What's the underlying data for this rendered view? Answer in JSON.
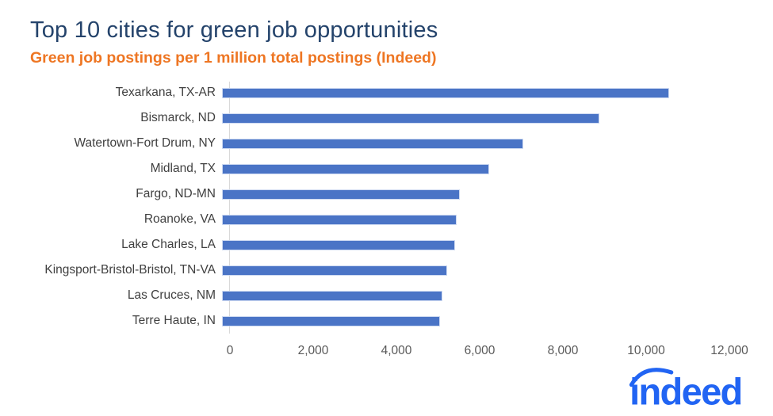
{
  "header": {
    "title": "Top 10 cities for green job opportunities",
    "subtitle": "Green job postings per 1 million total postings (Indeed)"
  },
  "chart_data": {
    "type": "bar",
    "orientation": "horizontal",
    "title": "Top 10 cities for green job opportunities",
    "subtitle": "Green job postings per 1 million total postings (Indeed)",
    "categories": [
      "Texarkana, TX-AR",
      "Bismarck, ND",
      "Watertown-Fort Drum, NY",
      "Midland, TX",
      "Fargo, ND-MN",
      "Roanoke, VA",
      "Lake Charles, LA",
      "Kingsport-Bristol-Bristol, TN-VA",
      "Las Cruces, NM",
      "Terre Haute, IN"
    ],
    "values": [
      10750,
      9070,
      7230,
      6420,
      5720,
      5640,
      5600,
      5410,
      5300,
      5240
    ],
    "xlabel": "",
    "ylabel": "",
    "xlim": [
      0,
      12000
    ],
    "x_ticks": [
      0,
      2000,
      4000,
      6000,
      8000,
      10000,
      12000
    ],
    "x_tick_labels": [
      "0",
      "2,000",
      "4,000",
      "6,000",
      "8,000",
      "10,000",
      "12,000"
    ],
    "grid": false,
    "legend_position": "none"
  },
  "branding": {
    "logo_text": "indeed"
  },
  "colors": {
    "title": "#24436b",
    "subtitle": "#ee7623",
    "bar": "#4a74c6",
    "bar_border": "#cdd9f1",
    "axis_line": "#d9d9d9",
    "tick_label": "#595959",
    "category_label": "#404040",
    "logo_blue": "#2164f3",
    "background": "#ffffff"
  }
}
